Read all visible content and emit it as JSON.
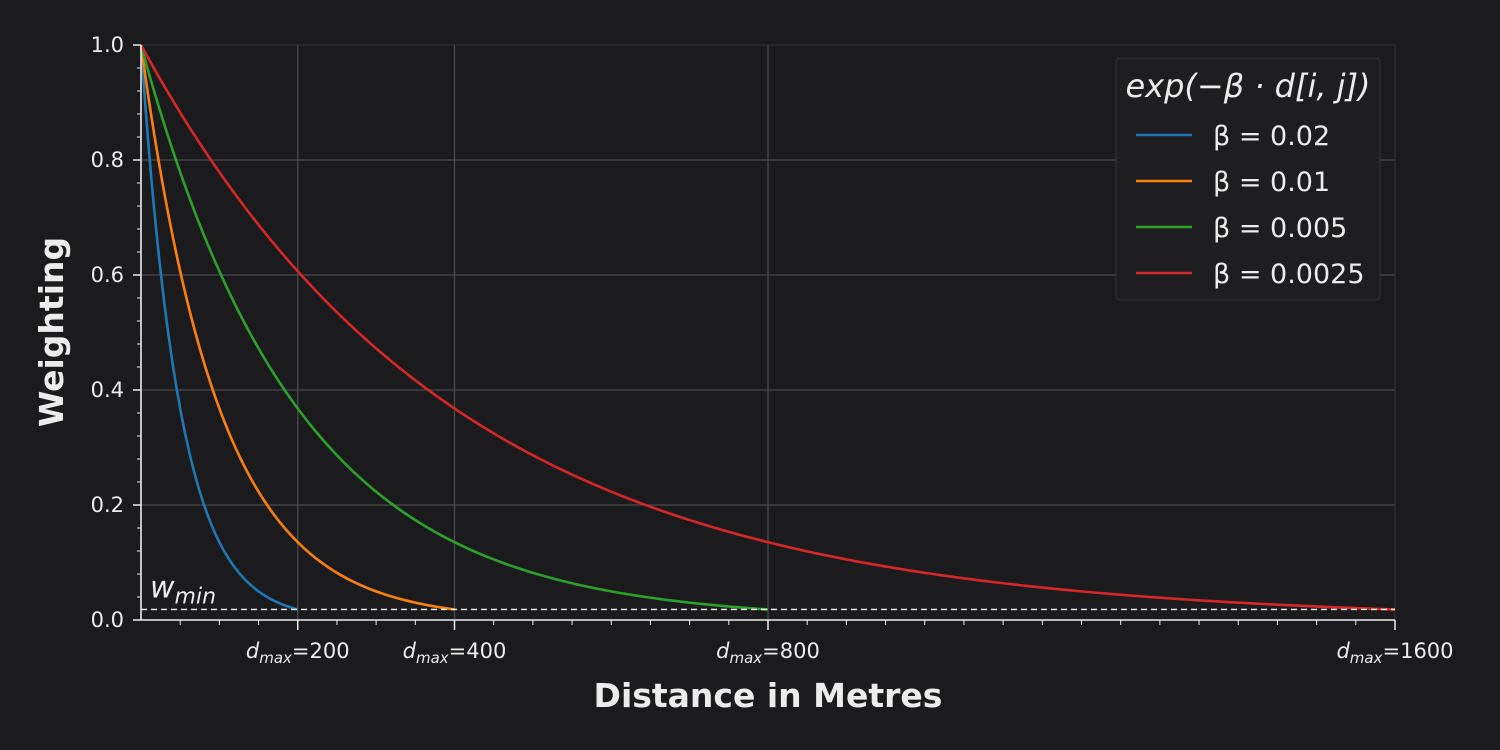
{
  "chart_data": {
    "type": "line",
    "xlabel": "Distance in Metres",
    "ylabel": "Weighting",
    "xlim": [
      0,
      1600
    ],
    "ylim": [
      0,
      1.0
    ],
    "yticks": [
      "0.0",
      "0.2",
      "0.4",
      "0.6",
      "0.8",
      "1.0"
    ],
    "xticks": [
      {
        "value": 200,
        "label": "d_max = 200"
      },
      {
        "value": 400,
        "label": "d_max = 400"
      },
      {
        "value": 800,
        "label": "d_max = 800"
      },
      {
        "value": 1600,
        "label": "d_max = 1600"
      }
    ],
    "w_min": 0.0183,
    "w_min_label": "w_min",
    "grid": true,
    "legend": {
      "title": "exp(−β · d[i, j])",
      "placement": "top-right"
    },
    "series": [
      {
        "name": "β = 0.02",
        "beta": 0.02,
        "d_max": 200,
        "color": "#1f77b4"
      },
      {
        "name": "β = 0.01",
        "beta": 0.01,
        "d_max": 400,
        "color": "#ff7f0e"
      },
      {
        "name": "β = 0.005",
        "beta": 0.005,
        "d_max": 800,
        "color": "#2ca02c"
      },
      {
        "name": "β = 0.0025",
        "beta": 0.0025,
        "d_max": 1600,
        "color": "#d62728"
      }
    ],
    "colors": {
      "background": "#1b1b1d",
      "text": "#ececec",
      "grid": "#4a4a4c"
    }
  }
}
